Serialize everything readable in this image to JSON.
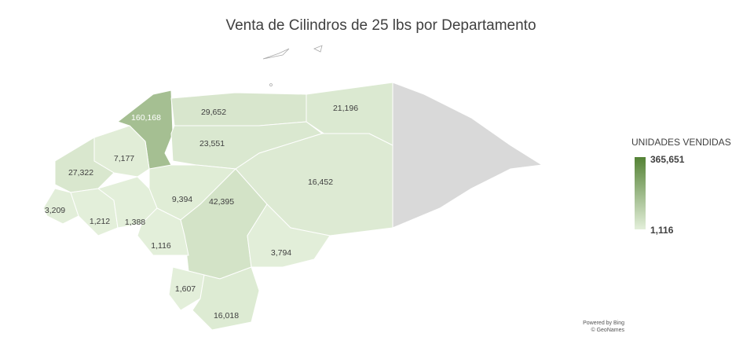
{
  "chart_data": {
    "type": "choropleth",
    "title": "Venta de Cilindros de 25 lbs por Departamento",
    "categories": [
      null,
      null,
      null,
      null,
      null,
      null,
      null,
      null,
      null,
      null,
      null,
      null,
      null,
      null,
      null,
      null
    ],
    "values": [
      160168,
      29652,
      21196,
      23551,
      7177,
      27322,
      16452,
      9394,
      3209,
      1212,
      1388,
      42395,
      1116,
      3794,
      1607,
      16018
    ],
    "value_labels": [
      "160,168",
      "29,652",
      "21,196",
      "23,551",
      "7,177",
      "27,322",
      "16,452",
      "9,394",
      "3,209",
      "1,212",
      "1,388",
      "42,395",
      "1,116",
      "3,794",
      "1,607",
      "16,018"
    ],
    "legend_title": "UNIDADES VENDIDAS",
    "scale": [
      {
        "value": 1116,
        "label": "1,116"
      },
      {
        "value": 365651,
        "label": "365,651"
      }
    ],
    "color_low": "#e3efda",
    "color_high": "#548235",
    "no_data_color": "#d9d9d9",
    "credits": [
      "Powered by Bing",
      "© GeoNames"
    ]
  }
}
